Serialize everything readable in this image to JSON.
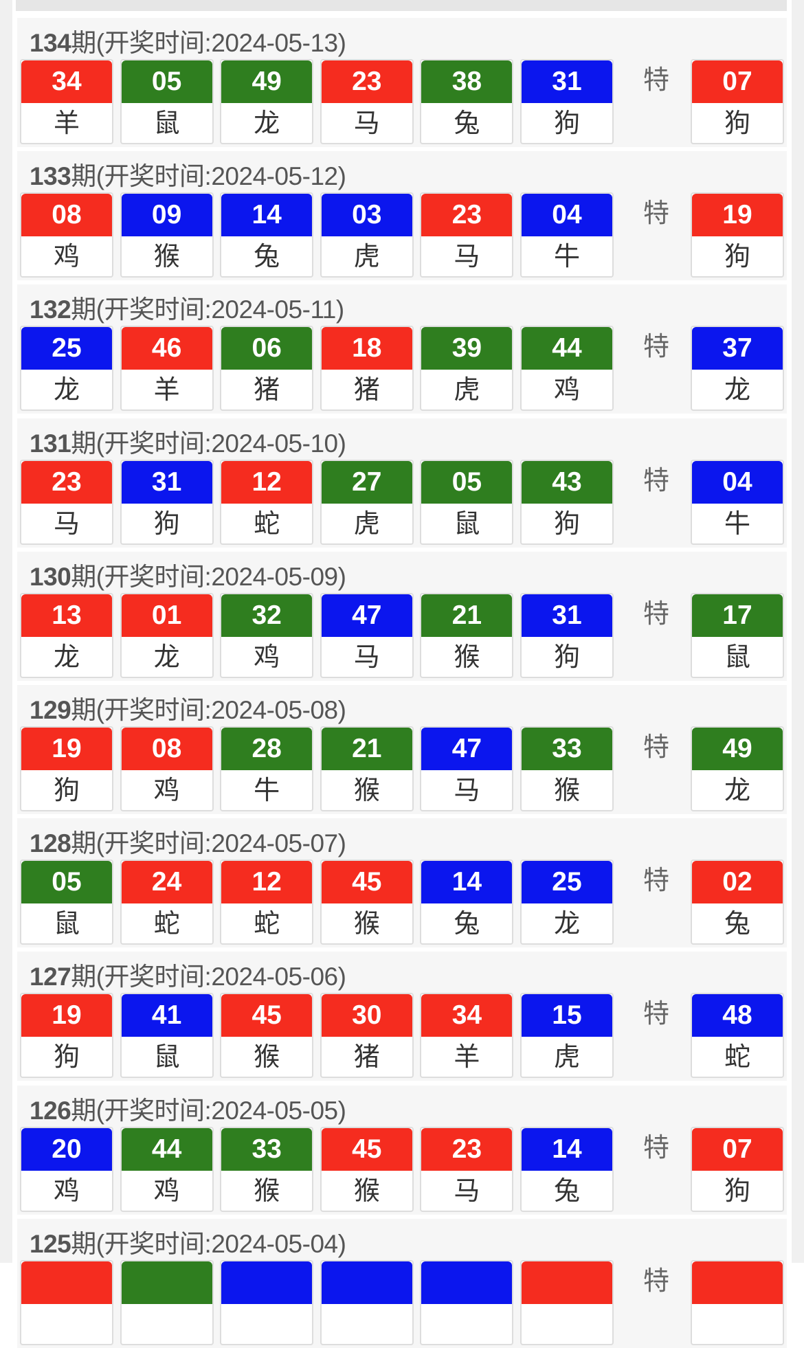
{
  "colors": {
    "red": "#f52c1f",
    "green": "#2f7e1f",
    "blue": "#0b16ee"
  },
  "special_label": "特",
  "draws": [
    {
      "period": "134",
      "label": "期(开奖时间:2024-05-13)",
      "balls": [
        {
          "n": "34",
          "z": "羊",
          "c": "red"
        },
        {
          "n": "05",
          "z": "鼠",
          "c": "green"
        },
        {
          "n": "49",
          "z": "龙",
          "c": "green"
        },
        {
          "n": "23",
          "z": "马",
          "c": "red"
        },
        {
          "n": "38",
          "z": "兔",
          "c": "green"
        },
        {
          "n": "31",
          "z": "狗",
          "c": "blue"
        }
      ],
      "special": {
        "n": "07",
        "z": "狗",
        "c": "red"
      }
    },
    {
      "period": "133",
      "label": "期(开奖时间:2024-05-12)",
      "balls": [
        {
          "n": "08",
          "z": "鸡",
          "c": "red"
        },
        {
          "n": "09",
          "z": "猴",
          "c": "blue"
        },
        {
          "n": "14",
          "z": "兔",
          "c": "blue"
        },
        {
          "n": "03",
          "z": "虎",
          "c": "blue"
        },
        {
          "n": "23",
          "z": "马",
          "c": "red"
        },
        {
          "n": "04",
          "z": "牛",
          "c": "blue"
        }
      ],
      "special": {
        "n": "19",
        "z": "狗",
        "c": "red"
      }
    },
    {
      "period": "132",
      "label": "期(开奖时间:2024-05-11)",
      "balls": [
        {
          "n": "25",
          "z": "龙",
          "c": "blue"
        },
        {
          "n": "46",
          "z": "羊",
          "c": "red"
        },
        {
          "n": "06",
          "z": "猪",
          "c": "green"
        },
        {
          "n": "18",
          "z": "猪",
          "c": "red"
        },
        {
          "n": "39",
          "z": "虎",
          "c": "green"
        },
        {
          "n": "44",
          "z": "鸡",
          "c": "green"
        }
      ],
      "special": {
        "n": "37",
        "z": "龙",
        "c": "blue"
      }
    },
    {
      "period": "131",
      "label": "期(开奖时间:2024-05-10)",
      "balls": [
        {
          "n": "23",
          "z": "马",
          "c": "red"
        },
        {
          "n": "31",
          "z": "狗",
          "c": "blue"
        },
        {
          "n": "12",
          "z": "蛇",
          "c": "red"
        },
        {
          "n": "27",
          "z": "虎",
          "c": "green"
        },
        {
          "n": "05",
          "z": "鼠",
          "c": "green"
        },
        {
          "n": "43",
          "z": "狗",
          "c": "green"
        }
      ],
      "special": {
        "n": "04",
        "z": "牛",
        "c": "blue"
      }
    },
    {
      "period": "130",
      "label": "期(开奖时间:2024-05-09)",
      "balls": [
        {
          "n": "13",
          "z": "龙",
          "c": "red"
        },
        {
          "n": "01",
          "z": "龙",
          "c": "red"
        },
        {
          "n": "32",
          "z": "鸡",
          "c": "green"
        },
        {
          "n": "47",
          "z": "马",
          "c": "blue"
        },
        {
          "n": "21",
          "z": "猴",
          "c": "green"
        },
        {
          "n": "31",
          "z": "狗",
          "c": "blue"
        }
      ],
      "special": {
        "n": "17",
        "z": "鼠",
        "c": "green"
      }
    },
    {
      "period": "129",
      "label": "期(开奖时间:2024-05-08)",
      "balls": [
        {
          "n": "19",
          "z": "狗",
          "c": "red"
        },
        {
          "n": "08",
          "z": "鸡",
          "c": "red"
        },
        {
          "n": "28",
          "z": "牛",
          "c": "green"
        },
        {
          "n": "21",
          "z": "猴",
          "c": "green"
        },
        {
          "n": "47",
          "z": "马",
          "c": "blue"
        },
        {
          "n": "33",
          "z": "猴",
          "c": "green"
        }
      ],
      "special": {
        "n": "49",
        "z": "龙",
        "c": "green"
      }
    },
    {
      "period": "128",
      "label": "期(开奖时间:2024-05-07)",
      "balls": [
        {
          "n": "05",
          "z": "鼠",
          "c": "green"
        },
        {
          "n": "24",
          "z": "蛇",
          "c": "red"
        },
        {
          "n": "12",
          "z": "蛇",
          "c": "red"
        },
        {
          "n": "45",
          "z": "猴",
          "c": "red"
        },
        {
          "n": "14",
          "z": "兔",
          "c": "blue"
        },
        {
          "n": "25",
          "z": "龙",
          "c": "blue"
        }
      ],
      "special": {
        "n": "02",
        "z": "兔",
        "c": "red"
      }
    },
    {
      "period": "127",
      "label": "期(开奖时间:2024-05-06)",
      "balls": [
        {
          "n": "19",
          "z": "狗",
          "c": "red"
        },
        {
          "n": "41",
          "z": "鼠",
          "c": "blue"
        },
        {
          "n": "45",
          "z": "猴",
          "c": "red"
        },
        {
          "n": "30",
          "z": "猪",
          "c": "red"
        },
        {
          "n": "34",
          "z": "羊",
          "c": "red"
        },
        {
          "n": "15",
          "z": "虎",
          "c": "blue"
        }
      ],
      "special": {
        "n": "48",
        "z": "蛇",
        "c": "blue"
      }
    },
    {
      "period": "126",
      "label": "期(开奖时间:2024-05-05)",
      "balls": [
        {
          "n": "20",
          "z": "鸡",
          "c": "blue"
        },
        {
          "n": "44",
          "z": "鸡",
          "c": "green"
        },
        {
          "n": "33",
          "z": "猴",
          "c": "green"
        },
        {
          "n": "45",
          "z": "猴",
          "c": "red"
        },
        {
          "n": "23",
          "z": "马",
          "c": "red"
        },
        {
          "n": "14",
          "z": "兔",
          "c": "blue"
        }
      ],
      "special": {
        "n": "07",
        "z": "狗",
        "c": "red"
      }
    },
    {
      "period": "125",
      "label": "期(开奖时间:2024-05-04)",
      "balls": [
        {
          "n": "",
          "z": "",
          "c": "red"
        },
        {
          "n": "",
          "z": "",
          "c": "green"
        },
        {
          "n": "",
          "z": "",
          "c": "blue"
        },
        {
          "n": "",
          "z": "",
          "c": "blue"
        },
        {
          "n": "",
          "z": "",
          "c": "blue"
        },
        {
          "n": "",
          "z": "",
          "c": "red"
        }
      ],
      "special": {
        "n": "",
        "z": "",
        "c": "red"
      }
    }
  ]
}
